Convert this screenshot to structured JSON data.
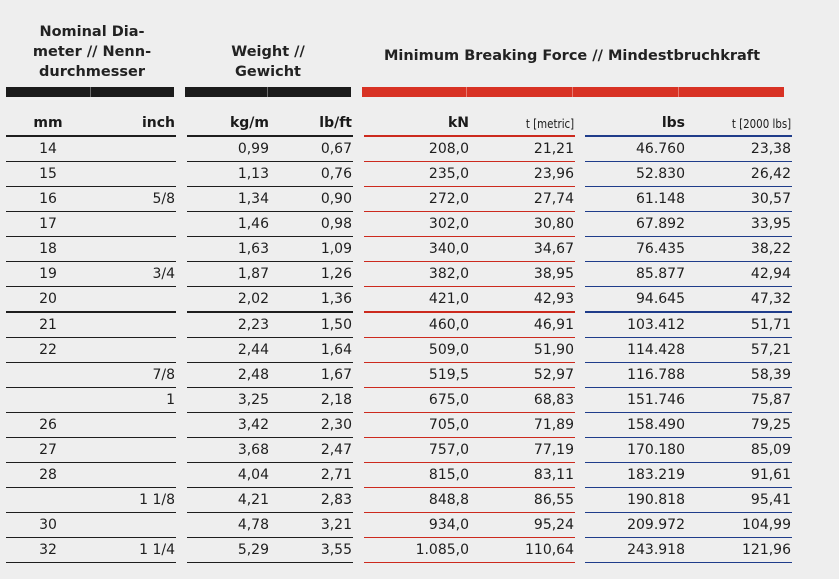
{
  "headers": {
    "diameter": "Nominal Dia-\nmeter // Nenn-\ndurchmesser",
    "weight": "Weight //\nGewicht",
    "breaking_force": "Minimum Breaking Force // Mindestbruchkraft"
  },
  "columns": [
    "mm",
    "inch",
    "kg/m",
    "lb/ft",
    "kN",
    "t [metric]",
    "lbs",
    "t [2000 lbs]"
  ],
  "colors": {
    "diameter_bar": "#1b1b1b",
    "weight_bar": "#1b1b1b",
    "force_bar": "#d83224",
    "metric_rule": "#cc2a1e",
    "imperial_rule": "#1f3c8a",
    "background": "#eeeeee"
  },
  "rows": [
    [
      "14",
      "",
      "0,99",
      "0,67",
      "208,0",
      "21,21",
      "46.760",
      "23,38"
    ],
    [
      "15",
      "",
      "1,13",
      "0,76",
      "235,0",
      "23,96",
      "52.830",
      "26,42"
    ],
    [
      "16",
      "5/8",
      "1,34",
      "0,90",
      "272,0",
      "27,74",
      "61.148",
      "30,57"
    ],
    [
      "17",
      "",
      "1,46",
      "0,98",
      "302,0",
      "30,80",
      "67.892",
      "33,95"
    ],
    [
      "18",
      "",
      "1,63",
      "1,09",
      "340,0",
      "34,67",
      "76.435",
      "38,22"
    ],
    [
      "19",
      "3/4",
      "1,87",
      "1,26",
      "382,0",
      "38,95",
      "85.877",
      "42,94"
    ],
    [
      "20",
      "",
      "2,02",
      "1,36",
      "421,0",
      "42,93",
      "94.645",
      "47,32"
    ],
    [
      "21",
      "",
      "2,23",
      "1,50",
      "460,0",
      "46,91",
      "103.412",
      "51,71"
    ],
    [
      "22",
      "",
      "2,44",
      "1,64",
      "509,0",
      "51,90",
      "114.428",
      "57,21"
    ],
    [
      "",
      "7/8",
      "2,48",
      "1,67",
      "519,5",
      "52,97",
      "116.788",
      "58,39"
    ],
    [
      "",
      "1",
      "3,25",
      "2,18",
      "675,0",
      "68,83",
      "151.746",
      "75,87"
    ],
    [
      "26",
      "",
      "3,42",
      "2,30",
      "705,0",
      "71,89",
      "158.490",
      "79,25"
    ],
    [
      "27",
      "",
      "3,68",
      "2,47",
      "757,0",
      "77,19",
      "170.180",
      "85,09"
    ],
    [
      "28",
      "",
      "4,04",
      "2,71",
      "815,0",
      "83,11",
      "183.219",
      "91,61"
    ],
    [
      "",
      "1 1/8",
      "4,21",
      "2,83",
      "848,8",
      "86,55",
      "190.818",
      "95,41"
    ],
    [
      "30",
      "",
      "4,78",
      "3,21",
      "934,0",
      "95,24",
      "209.972",
      "104,99"
    ],
    [
      "32",
      "1 1/4",
      "5,29",
      "3,55",
      "1.085,0",
      "110,64",
      "243.918",
      "121,96"
    ]
  ]
}
